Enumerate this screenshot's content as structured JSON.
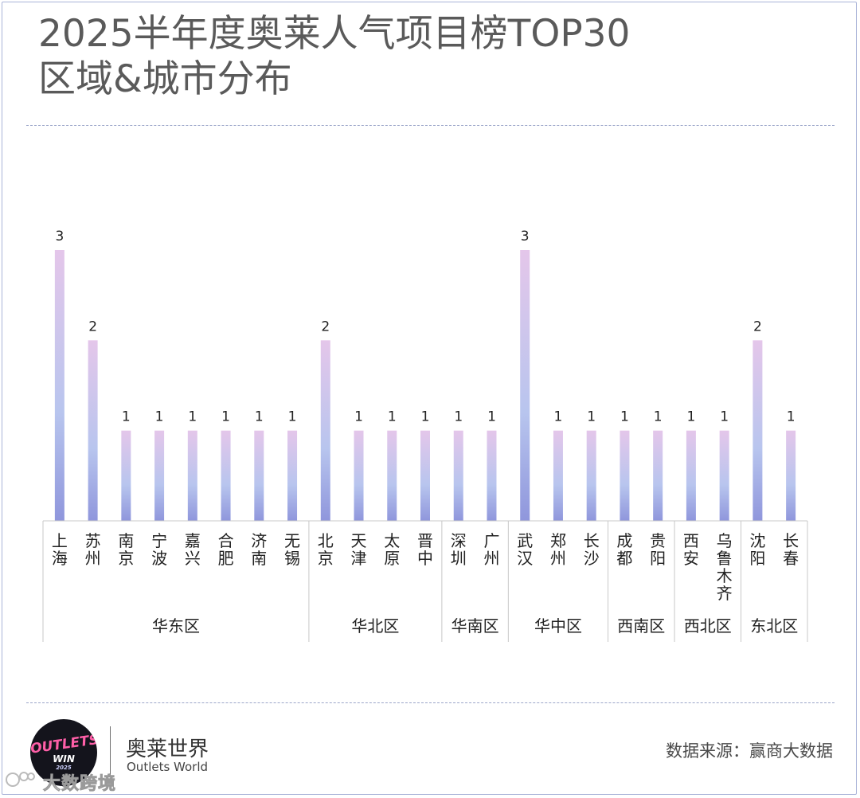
{
  "title": {
    "line1": "2025半年度奥莱人气项目榜TOP30",
    "line2": "区域&城市分布"
  },
  "chart_data": {
    "type": "bar",
    "title": "2025半年度奥莱人气项目榜TOP30 区域&城市分布",
    "categories": [
      "上海",
      "苏州",
      "南京",
      "宁波",
      "嘉兴",
      "合肥",
      "济南",
      "无锡",
      "北京",
      "天津",
      "太原",
      "晋中",
      "深圳",
      "广州",
      "武汉",
      "郑州",
      "长沙",
      "成都",
      "贵阳",
      "西安",
      "乌鲁木齐",
      "沈阳",
      "长春"
    ],
    "values": [
      3,
      2,
      1,
      1,
      1,
      1,
      1,
      1,
      2,
      1,
      1,
      1,
      1,
      1,
      3,
      1,
      1,
      1,
      1,
      1,
      1,
      2,
      1
    ],
    "groups": [
      {
        "name": "华东区",
        "count": 8
      },
      {
        "name": "华北区",
        "count": 4
      },
      {
        "name": "华南区",
        "count": 2
      },
      {
        "name": "华中区",
        "count": 3
      },
      {
        "name": "西南区",
        "count": 2
      },
      {
        "name": "西北区",
        "count": 2
      },
      {
        "name": "东北区",
        "count": 2
      }
    ],
    "ylim": [
      0,
      3
    ],
    "grid": false,
    "legend": "none",
    "colors": {
      "bar_top": "#e4c6ea",
      "bar_mid": "#b8c5ee",
      "bar_bottom": "#8f96dc",
      "axis": "#c8c8c8",
      "label": "#222222"
    }
  },
  "footer": {
    "brand_cn": "奥莱世界",
    "brand_en": "Outlets World",
    "source": "数据来源：赢商大数据",
    "logo_line1": "OUTLETS",
    "logo_line2": "WIN",
    "logo_line3": "2025",
    "watermark": "大数跨境"
  }
}
